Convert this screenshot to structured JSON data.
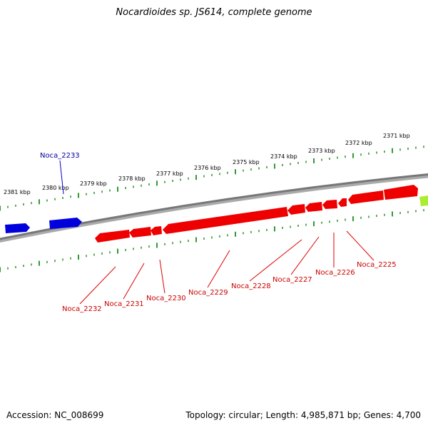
{
  "title": "Nocardioides sp. JS614, complete genome",
  "footer": {
    "accession": "Accession: NC_008699",
    "topology": "Topology: circular; Length: 4,985,871 bp; Genes: 4,700"
  },
  "colors": {
    "reverse_gene": "#ff0000",
    "forward_gene": "#0000ff",
    "other_gene": "#aaff44",
    "tick": "#339933",
    "backbone": "#888888",
    "reverse_label": "#cc0000",
    "forward_label": "#000099"
  },
  "kbp_labels": [
    "2381 kbp",
    "2380 kbp",
    "2379 kbp",
    "2378 kbp",
    "2377 kbp",
    "2376 kbp",
    "2375 kbp",
    "2374 kbp",
    "2373 kbp",
    "2372 kbp",
    "2371 kbp"
  ],
  "genes": [
    {
      "name": "Noca_2233",
      "strand": "forward"
    },
    {
      "name": "Noca_2232",
      "strand": "reverse"
    },
    {
      "name": "Noca_2231",
      "strand": "reverse"
    },
    {
      "name": "Noca_2230",
      "strand": "reverse"
    },
    {
      "name": "Noca_2229",
      "strand": "reverse"
    },
    {
      "name": "Noca_2228",
      "strand": "reverse"
    },
    {
      "name": "Noca_2227",
      "strand": "reverse"
    },
    {
      "name": "Noca_2226",
      "strand": "reverse"
    },
    {
      "name": "Noca_2225",
      "strand": "reverse"
    }
  ]
}
